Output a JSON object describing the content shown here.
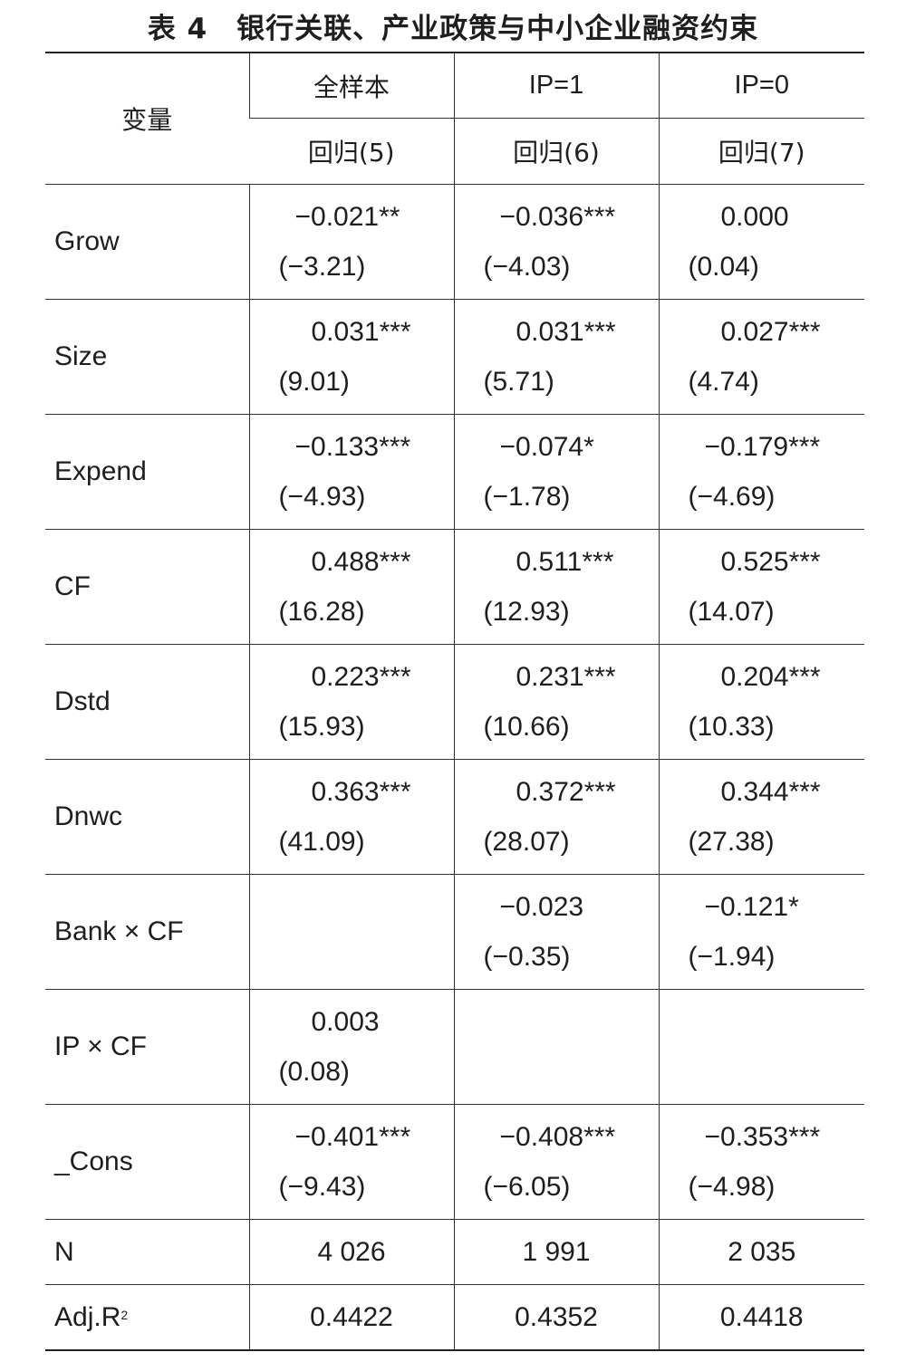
{
  "title": "表 4　银行关联、产业政策与中小企业融资约束",
  "header": {
    "variable_label": "变量",
    "groups": [
      "全样本",
      "IP=1",
      "IP=0"
    ],
    "regressions": [
      "回归(5)",
      "回归(6)",
      "回归(7)"
    ]
  },
  "rows": [
    {
      "var": "Grow",
      "cells": [
        {
          "coef": "−0.021**",
          "t": "(−3.21)"
        },
        {
          "coef": "−0.036***",
          "t": "(−4.03)"
        },
        {
          "coef": "0.000",
          "t": "(0.04)"
        }
      ]
    },
    {
      "var": "Size",
      "cells": [
        {
          "coef": "0.031***",
          "t": "(9.01)"
        },
        {
          "coef": "0.031***",
          "t": "(5.71)"
        },
        {
          "coef": "0.027***",
          "t": "(4.74)"
        }
      ]
    },
    {
      "var": "Expend",
      "cells": [
        {
          "coef": "−0.133***",
          "t": "(−4.93)"
        },
        {
          "coef": "−0.074*",
          "t": "(−1.78)"
        },
        {
          "coef": "−0.179***",
          "t": "(−4.69)"
        }
      ]
    },
    {
      "var": "CF",
      "cells": [
        {
          "coef": "0.488***",
          "t": "(16.28)"
        },
        {
          "coef": "0.511***",
          "t": "(12.93)"
        },
        {
          "coef": "0.525***",
          "t": "(14.07)"
        }
      ]
    },
    {
      "var": "Dstd",
      "cells": [
        {
          "coef": "0.223***",
          "t": "(15.93)"
        },
        {
          "coef": "0.231***",
          "t": "(10.66)"
        },
        {
          "coef": "0.204***",
          "t": "(10.33)"
        }
      ]
    },
    {
      "var": "Dnwc",
      "cells": [
        {
          "coef": "0.363***",
          "t": "(41.09)"
        },
        {
          "coef": "0.372***",
          "t": "(28.07)"
        },
        {
          "coef": "0.344***",
          "t": "(27.38)"
        }
      ]
    },
    {
      "var": "Bank × CF",
      "cells": [
        {
          "coef": "",
          "t": ""
        },
        {
          "coef": "−0.023",
          "t": "(−0.35)"
        },
        {
          "coef": "−0.121*",
          "t": "(−1.94)"
        }
      ]
    },
    {
      "var": "IP × CF",
      "cells": [
        {
          "coef": "0.003",
          "t": "(0.08)"
        },
        {
          "coef": "",
          "t": ""
        },
        {
          "coef": "",
          "t": ""
        }
      ]
    },
    {
      "var": "_Cons",
      "cells": [
        {
          "coef": "−0.401***",
          "t": "(−9.43)"
        },
        {
          "coef": "−0.408***",
          "t": "(−6.05)"
        },
        {
          "coef": "−0.353***",
          "t": "(−4.98)"
        }
      ]
    }
  ],
  "footer_rows": [
    {
      "var": "N",
      "values": [
        "4 026",
        "1 991",
        "2 035"
      ]
    },
    {
      "var_base": "Adj.R",
      "var_sup": "2",
      "values": [
        "0.4422",
        "0.4352",
        "0.4418"
      ]
    }
  ]
}
